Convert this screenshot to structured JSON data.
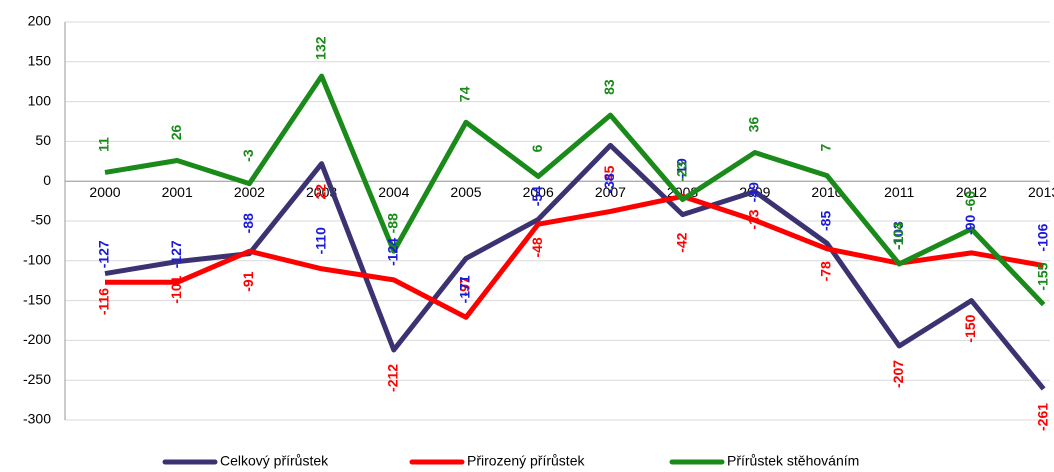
{
  "chart_data": {
    "type": "line",
    "categories": [
      "2000",
      "2001",
      "2002",
      "2003",
      "2004",
      "2005",
      "2006",
      "2007",
      "2008",
      "2009",
      "2010",
      "2011",
      "2012",
      "2013"
    ],
    "series": [
      {
        "name": "Celkový přírůstek",
        "color": "#3b3272",
        "label_color": "#ff0000",
        "values": [
          -116,
          -101,
          -91,
          22,
          -212,
          -97,
          -48,
          45,
          -42,
          -13,
          -78,
          -207,
          -150,
          -261
        ]
      },
      {
        "name": "Přirozený přírůstek",
        "color": "#ff0000",
        "label_color": "#1a1adc",
        "values": [
          -127,
          -127,
          -88,
          -110,
          -124,
          -171,
          -54,
          -38,
          -19,
          -49,
          -85,
          -103,
          -90,
          -106
        ]
      },
      {
        "name": "Přírůstek stěhováním",
        "color": "#1a8a1a",
        "label_color": "#1a8a1a",
        "values": [
          11,
          26,
          -3,
          132,
          -88,
          74,
          6,
          83,
          -23,
          36,
          7,
          -104,
          -60,
          -155
        ]
      }
    ],
    "ylim": [
      -300,
      200
    ],
    "yticks": [
      -300,
      -250,
      -200,
      -150,
      -100,
      -50,
      0,
      50,
      100,
      150,
      200
    ],
    "grid": true,
    "legend": "bottom"
  }
}
